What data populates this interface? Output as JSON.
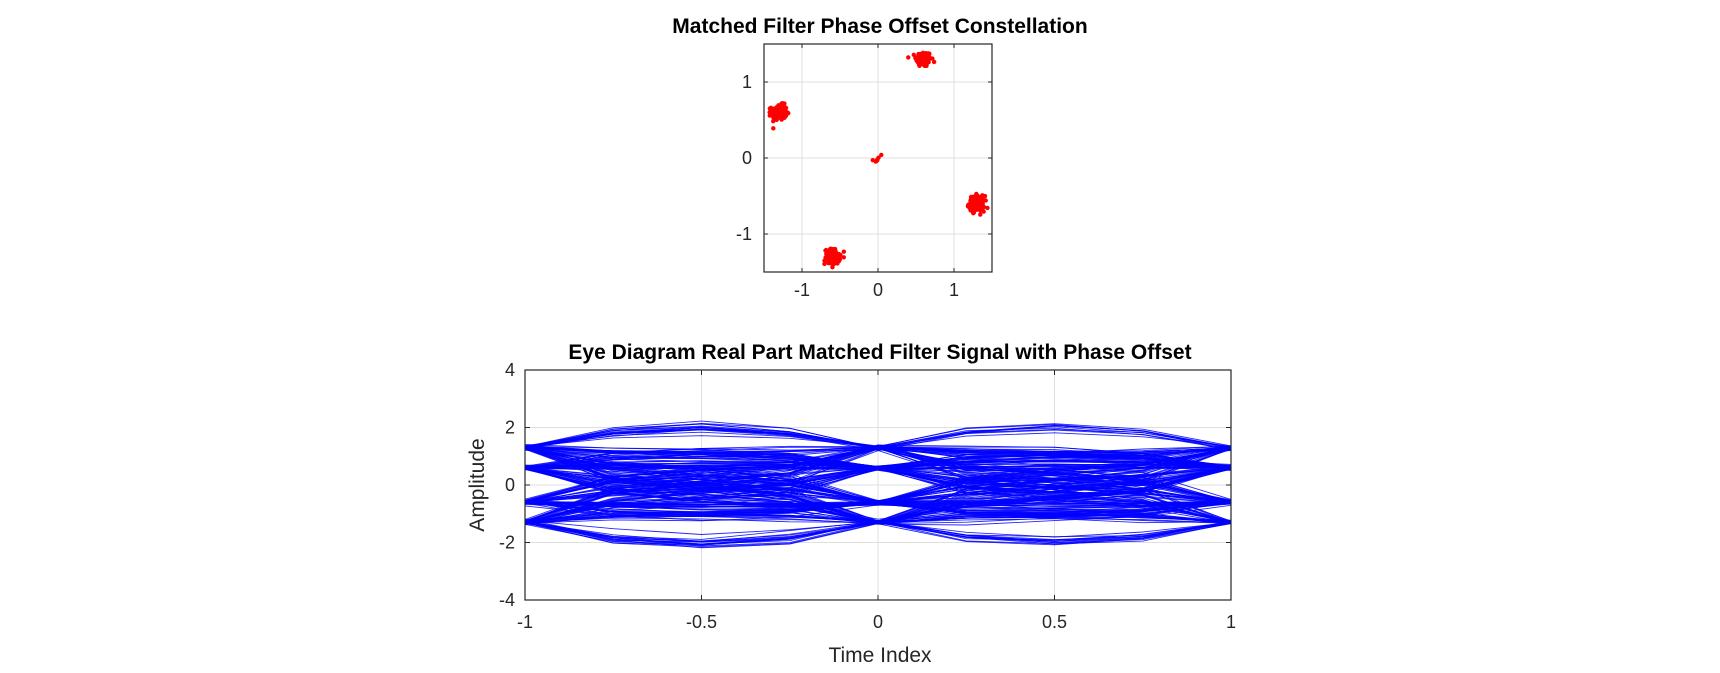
{
  "chart_data": [
    {
      "type": "scatter",
      "title": "Matched Filter Phase Offset Constellation",
      "xlabel": "",
      "ylabel": "",
      "xlim": [
        -1.5,
        1.5
      ],
      "ylim": [
        -1.5,
        1.5
      ],
      "xticks": [
        -1,
        0,
        1
      ],
      "xtick_labels": [
        "-1",
        "0",
        "1"
      ],
      "yticks": [
        -1,
        0,
        1
      ],
      "ytick_labels": [
        "-1",
        "0",
        "1"
      ],
      "grid": true,
      "marker_color": "#ff0000",
      "series": [
        {
          "clusters": [
            {
              "center": [
                0.6,
                1.3
              ],
              "spread": 0.05,
              "count": 150
            },
            {
              "center": [
                -1.3,
                0.6
              ],
              "spread": 0.05,
              "count": 150
            },
            {
              "center": [
                1.3,
                -0.6
              ],
              "spread": 0.05,
              "count": 150
            },
            {
              "center": [
                -0.6,
                -1.3
              ],
              "spread": 0.05,
              "count": 150
            },
            {
              "center": [
                0.0,
                0.0
              ],
              "spread": 0.03,
              "count": 6
            }
          ]
        }
      ]
    },
    {
      "type": "line",
      "title": "Eye Diagram Real Part Matched Filter Signal with Phase Offset",
      "xlabel": "Time Index",
      "ylabel": "Amplitude",
      "xlim": [
        -1,
        1
      ],
      "ylim": [
        -4,
        4
      ],
      "xticks": [
        -1,
        -0.5,
        0,
        0.5,
        1
      ],
      "xtick_labels": [
        "-1",
        "-0.5",
        "0",
        "0.5",
        "1"
      ],
      "yticks": [
        -4,
        -2,
        0,
        2,
        4
      ],
      "ytick_labels": [
        "-4",
        "-2",
        "0",
        "2",
        "4"
      ],
      "grid": true,
      "line_color": "#0000ff",
      "eye": {
        "x": [
          -1,
          -0.75,
          -0.5,
          -0.25,
          0,
          0.25,
          0.5,
          0.75,
          1
        ],
        "symbol_levels": [
          -1.3,
          -0.6,
          0.6,
          1.3
        ],
        "peak_level": 2.1,
        "traces": 240
      }
    }
  ]
}
